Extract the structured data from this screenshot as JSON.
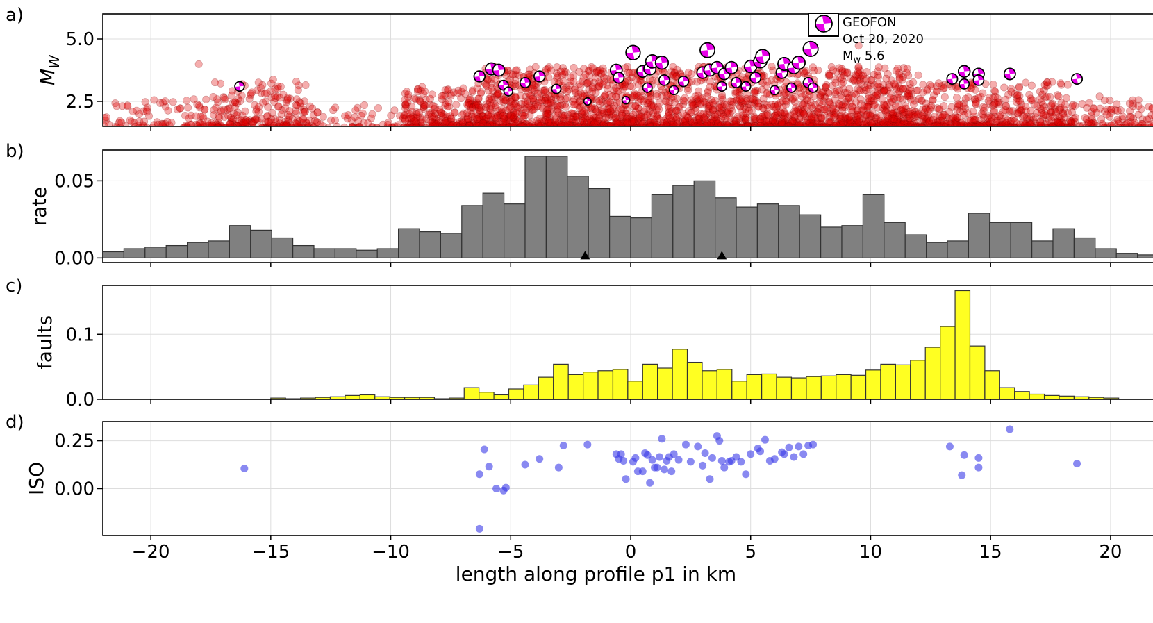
{
  "colors": {
    "quake_fill": "#e00000",
    "quake_stroke": "#800000",
    "beachball_color": "#e800e8",
    "rate_bar": "#808080",
    "faults_bar": "#ffff22",
    "iso_point": "#3a3ae8",
    "grid": "#dddddd"
  },
  "chart_data": [
    {
      "panel": "a)",
      "type": "scatter",
      "ylabel": "M_W",
      "yticks": [
        "2.5",
        "5.0"
      ],
      "ylim": [
        1.5,
        6.0
      ],
      "xlim": [
        -22.0,
        22.0
      ],
      "grid": true,
      "legend": {
        "placement": "top-right",
        "icon": "beachball-icon",
        "label_line1": "GEOFON",
        "label_line2": "Oct 20, 2020",
        "label_line3_main": "M",
        "label_line3_sub": "w",
        "label_line3_value": " 5.6"
      },
      "background_events_note": "dense swarm of ~thousands of small events (M 1.5–3) concentrated near -9 to 12 km and 13 to 18 km",
      "background_clusters": [
        {
          "x_min": -22,
          "x_max": -16,
          "count": 120,
          "m_max": 2.6
        },
        {
          "x_min": -17.5,
          "x_max": -13.5,
          "count": 220,
          "m_max": 3.3
        },
        {
          "x_min": -13.5,
          "x_max": -9.5,
          "count": 70,
          "m_max": 2.5
        },
        {
          "x_min": -9.5,
          "x_max": -6.5,
          "count": 260,
          "m_max": 3.1
        },
        {
          "x_min": -6.5,
          "x_max": 12,
          "count": 2400,
          "m_max": 3.9
        },
        {
          "x_min": 12,
          "x_max": 18.5,
          "count": 520,
          "m_max": 3.3
        },
        {
          "x_min": 18.5,
          "x_max": 22,
          "count": 110,
          "m_max": 2.7
        }
      ],
      "outlier_events": [
        {
          "x": -18.0,
          "y": 3.99
        },
        {
          "x": -19.4,
          "y": 2.51
        },
        {
          "x": 9.5,
          "y": 4.73
        },
        {
          "x": -14.9,
          "y": 3.37
        },
        {
          "x": -5.2,
          "y": 3.55
        },
        {
          "x": 6.9,
          "y": 4.15
        }
      ],
      "mechanisms": [
        {
          "x": -16.3,
          "y": 3.1
        },
        {
          "x": -6.3,
          "y": 3.5
        },
        {
          "x": -5.8,
          "y": 3.8
        },
        {
          "x": -5.5,
          "y": 3.75
        },
        {
          "x": -5.3,
          "y": 3.15
        },
        {
          "x": -5.1,
          "y": 2.9
        },
        {
          "x": -4.4,
          "y": 3.25
        },
        {
          "x": -3.8,
          "y": 3.5
        },
        {
          "x": -3.1,
          "y": 3.0
        },
        {
          "x": -1.8,
          "y": 2.5
        },
        {
          "x": -0.6,
          "y": 3.75
        },
        {
          "x": -0.5,
          "y": 3.45
        },
        {
          "x": -0.2,
          "y": 2.55
        },
        {
          "x": 0.1,
          "y": 4.45
        },
        {
          "x": 0.5,
          "y": 3.7
        },
        {
          "x": 0.8,
          "y": 3.8
        },
        {
          "x": 0.9,
          "y": 4.1
        },
        {
          "x": 1.3,
          "y": 4.05
        },
        {
          "x": 1.4,
          "y": 3.35
        },
        {
          "x": 0.7,
          "y": 3.05
        },
        {
          "x": 1.8,
          "y": 2.95
        },
        {
          "x": 2.2,
          "y": 3.3
        },
        {
          "x": 3.0,
          "y": 3.65
        },
        {
          "x": 3.3,
          "y": 3.75
        },
        {
          "x": 3.2,
          "y": 4.55
        },
        {
          "x": 3.6,
          "y": 3.85
        },
        {
          "x": 3.9,
          "y": 3.6
        },
        {
          "x": 4.2,
          "y": 3.85
        },
        {
          "x": 3.8,
          "y": 3.1
        },
        {
          "x": 4.4,
          "y": 3.25
        },
        {
          "x": 4.8,
          "y": 3.1
        },
        {
          "x": 5.0,
          "y": 3.9
        },
        {
          "x": 5.4,
          "y": 4.1
        },
        {
          "x": 5.5,
          "y": 4.3
        },
        {
          "x": 5.2,
          "y": 3.45
        },
        {
          "x": 6.0,
          "y": 2.95
        },
        {
          "x": 6.3,
          "y": 3.65
        },
        {
          "x": 6.4,
          "y": 4.0
        },
        {
          "x": 6.8,
          "y": 3.85
        },
        {
          "x": 7.0,
          "y": 4.05
        },
        {
          "x": 6.7,
          "y": 3.05
        },
        {
          "x": 7.4,
          "y": 3.25
        },
        {
          "x": 7.5,
          "y": 4.6
        },
        {
          "x": 7.6,
          "y": 3.05
        },
        {
          "x": 13.4,
          "y": 3.4
        },
        {
          "x": 13.9,
          "y": 3.7
        },
        {
          "x": 13.9,
          "y": 3.2
        },
        {
          "x": 14.5,
          "y": 3.6
        },
        {
          "x": 14.5,
          "y": 3.35
        },
        {
          "x": 15.8,
          "y": 3.6
        },
        {
          "x": 18.6,
          "y": 3.4
        }
      ]
    },
    {
      "panel": "b)",
      "type": "bar",
      "ylabel": "rate",
      "yticks": [
        "0.00",
        "0.05"
      ],
      "ylim": [
        -0.003,
        0.07
      ],
      "xlim": [
        -22.0,
        22.0
      ],
      "bin_edges_start": -22.0,
      "bin_width": 0.88,
      "values": [
        0.004,
        0.006,
        0.007,
        0.008,
        0.01,
        0.011,
        0.021,
        0.018,
        0.013,
        0.008,
        0.006,
        0.006,
        0.005,
        0.006,
        0.019,
        0.017,
        0.016,
        0.034,
        0.042,
        0.035,
        0.066,
        0.066,
        0.053,
        0.045,
        0.027,
        0.026,
        0.041,
        0.047,
        0.05,
        0.039,
        0.033,
        0.035,
        0.034,
        0.028,
        0.02,
        0.021,
        0.041,
        0.023,
        0.015,
        0.01,
        0.011,
        0.029,
        0.023,
        0.023,
        0.011,
        0.019,
        0.013,
        0.006,
        0.003,
        0.002,
        0.002
      ],
      "markers": [
        {
          "x": -1.9,
          "shape": "triangle"
        },
        {
          "x": 3.8,
          "shape": "triangle"
        }
      ],
      "grid": true
    },
    {
      "panel": "c)",
      "type": "bar",
      "ylabel": "faults",
      "yticks": [
        "0.0",
        "0.1"
      ],
      "ylim": [
        0.0,
        0.175
      ],
      "xlim": [
        -22.0,
        22.0
      ],
      "bin_edges_start": -15.0,
      "bin_width": 0.62,
      "values": [
        0.002,
        0.001,
        0.002,
        0.003,
        0.004,
        0.006,
        0.007,
        0.004,
        0.003,
        0.003,
        0.003,
        0.001,
        0.002,
        0.018,
        0.011,
        0.007,
        0.016,
        0.022,
        0.034,
        0.054,
        0.038,
        0.042,
        0.044,
        0.046,
        0.028,
        0.054,
        0.048,
        0.077,
        0.057,
        0.044,
        0.046,
        0.028,
        0.038,
        0.039,
        0.034,
        0.033,
        0.035,
        0.036,
        0.038,
        0.037,
        0.045,
        0.054,
        0.053,
        0.06,
        0.08,
        0.112,
        0.167,
        0.082,
        0.044,
        0.018,
        0.012,
        0.008,
        0.006,
        0.005,
        0.004,
        0.003,
        0.002
      ],
      "grid": true
    },
    {
      "panel": "d)",
      "type": "scatter",
      "ylabel": "ISO",
      "yticks": [
        "0.00",
        "0.25"
      ],
      "ylim": [
        -0.245,
        0.35
      ],
      "xlim": [
        -22.0,
        22.0
      ],
      "x": [
        -16.1,
        -6.3,
        -6.1,
        -5.9,
        -5.6,
        -5.3,
        -5.2,
        -4.4,
        -3.8,
        -3.0,
        -2.8,
        -1.8,
        -0.6,
        -0.5,
        -0.3,
        -0.2,
        0.1,
        0.3,
        0.5,
        0.6,
        0.7,
        0.8,
        0.9,
        1.0,
        1.2,
        1.3,
        1.4,
        1.5,
        1.6,
        1.7,
        1.8,
        2.0,
        2.3,
        2.5,
        2.8,
        3.1,
        3.3,
        3.4,
        3.6,
        3.8,
        3.9,
        4.1,
        4.2,
        4.4,
        4.6,
        4.8,
        5.0,
        5.3,
        5.4,
        5.6,
        5.8,
        6.0,
        6.3,
        6.4,
        6.6,
        6.8,
        7.0,
        7.2,
        7.4,
        7.6,
        -0.4,
        0.2,
        1.1,
        3.0,
        3.7,
        13.3,
        13.8,
        13.9,
        14.5,
        14.5,
        15.8,
        18.6
      ],
      "y": [
        0.105,
        0.075,
        0.205,
        0.115,
        0.0,
        -0.01,
        0.005,
        0.125,
        0.155,
        0.11,
        0.225,
        0.23,
        0.18,
        0.155,
        0.145,
        0.05,
        0.14,
        0.09,
        0.09,
        0.185,
        0.175,
        0.03,
        0.15,
        0.11,
        0.165,
        0.26,
        0.1,
        0.145,
        0.165,
        0.09,
        0.18,
        0.15,
        0.23,
        0.14,
        0.22,
        0.185,
        0.05,
        0.16,
        0.275,
        0.145,
        0.11,
        0.14,
        0.145,
        0.165,
        0.14,
        0.075,
        0.18,
        0.21,
        0.195,
        0.255,
        0.145,
        0.155,
        0.19,
        0.18,
        0.215,
        0.165,
        0.22,
        0.18,
        0.225,
        0.23,
        0.18,
        0.16,
        0.11,
        0.12,
        0.25,
        0.22,
        0.07,
        0.175,
        0.16,
        0.11,
        0.31,
        0.13
      ],
      "grid": true
    }
  ],
  "xaxis": {
    "label": "length along profile p1 in km",
    "ticks": [
      "−20",
      "−15",
      "−10",
      "−5",
      "0",
      "5",
      "10",
      "15",
      "20"
    ],
    "tick_values": [
      -20,
      -15,
      -10,
      -5,
      0,
      5,
      10,
      15,
      20
    ]
  }
}
